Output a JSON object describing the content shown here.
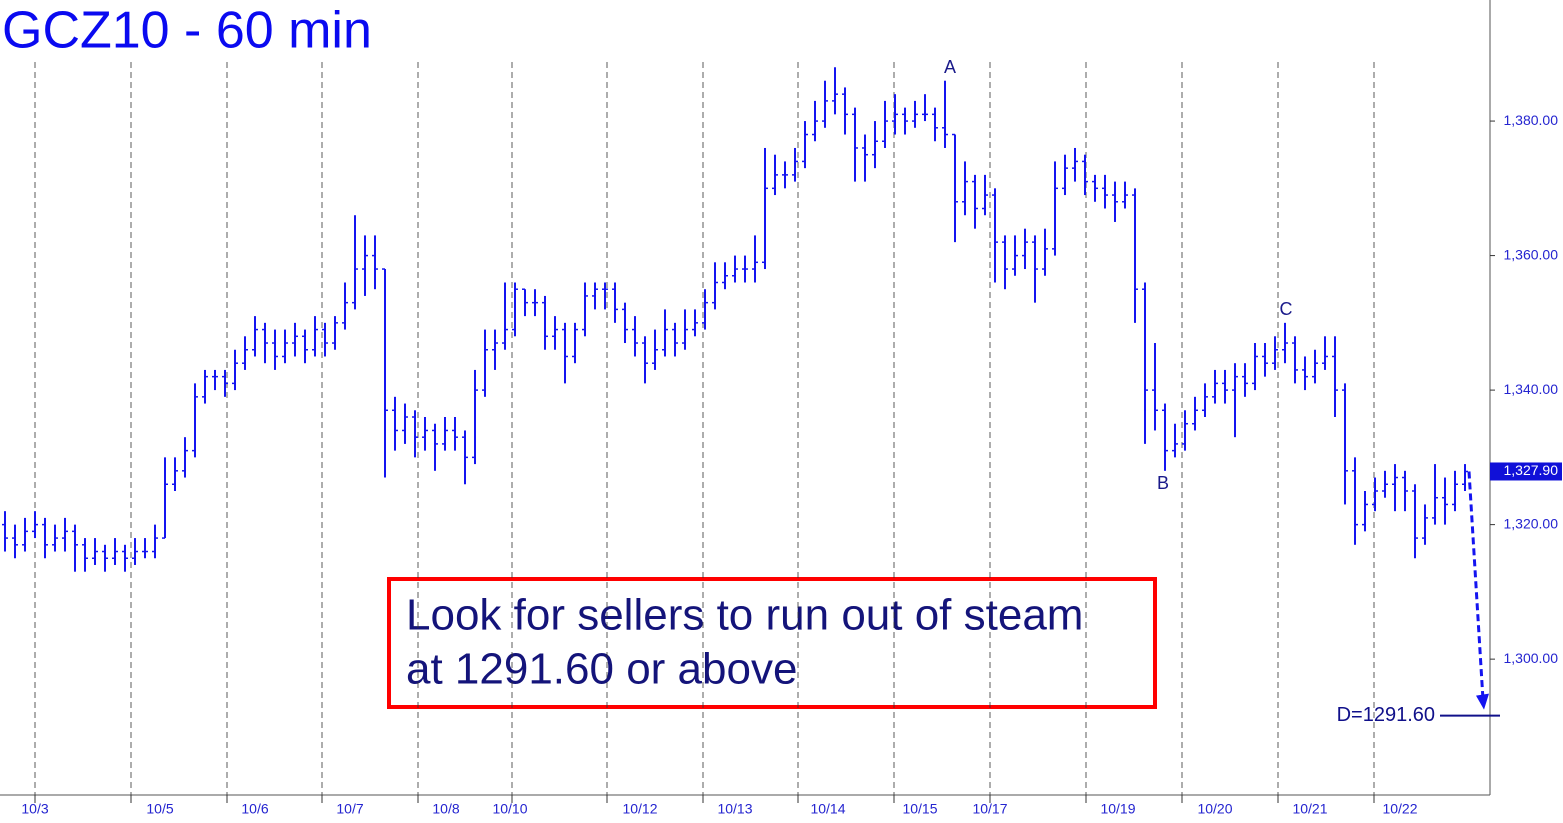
{
  "chart_data": {
    "type": "ohlc",
    "title": "GCZ10 - 60 min",
    "color": "#1414f0",
    "open": [
      1320,
      1318,
      1317,
      1319,
      1320,
      1317,
      1318,
      1319,
      1317,
      1315,
      1316,
      1315,
      1316,
      1315,
      1316,
      1316,
      1318,
      1326,
      1328,
      1331,
      1339,
      1342,
      1342,
      1341,
      1344,
      1346,
      1349,
      1347,
      1345,
      1347,
      1348,
      1346,
      1349,
      1347,
      1350,
      1353,
      1358,
      1360,
      1358,
      1337,
      1334,
      1336,
      1333,
      1334,
      1332,
      1334,
      1333,
      1330,
      1340,
      1346,
      1347,
      1349,
      1355,
      1353,
      1353,
      1348,
      1349,
      1345,
      1349,
      1354,
      1355,
      1355,
      1352,
      1349,
      1347,
      1344,
      1346,
      1349,
      1347,
      1349,
      1350,
      1353,
      1356,
      1357,
      1358,
      1358,
      1359,
      1370,
      1372,
      1372,
      1374,
      1378,
      1380,
      1383,
      1384,
      1381,
      1376,
      1375,
      1377,
      1380,
      1381,
      1380,
      1381,
      1381,
      1379,
      1378,
      1368,
      1371,
      1367,
      1369,
      1362,
      1358,
      1360,
      1362,
      1358,
      1361,
      1370,
      1373,
      1374,
      1371,
      1370,
      1369,
      1368,
      1369,
      1355,
      1340,
      1337,
      1331,
      1332,
      1335,
      1337,
      1339,
      1341,
      1340,
      1342,
      1341,
      1345,
      1344,
      1346,
      1347,
      1343,
      1342,
      1344,
      1345,
      1340,
      1328,
      1320,
      1323,
      1325,
      1326,
      1327,
      1325,
      1318,
      1321,
      1324,
      1323,
      1326
    ],
    "high": [
      1322,
      1320,
      1321,
      1322,
      1321,
      1320,
      1321,
      1320,
      1318,
      1318,
      1317,
      1318,
      1317,
      1318,
      1318,
      1320,
      1330,
      1330,
      1333,
      1341,
      1343,
      1343,
      1343,
      1346,
      1348,
      1351,
      1350,
      1349,
      1349,
      1350,
      1349,
      1351,
      1350,
      1351,
      1356,
      1366,
      1363,
      1363,
      1358,
      1339,
      1338,
      1337,
      1336,
      1335,
      1336,
      1336,
      1334,
      1343,
      1349,
      1349,
      1356,
      1356,
      1355,
      1355,
      1354,
      1351,
      1350,
      1350,
      1356,
      1356,
      1356,
      1356,
      1353,
      1351,
      1348,
      1349,
      1352,
      1350,
      1352,
      1352,
      1355,
      1359,
      1359,
      1360,
      1360,
      1363,
      1376,
      1375,
      1374,
      1376,
      1380,
      1383,
      1386,
      1388,
      1385,
      1382,
      1378,
      1380,
      1383,
      1384,
      1382,
      1383,
      1384,
      1382,
      1386,
      1378,
      1374,
      1372,
      1372,
      1370,
      1363,
      1363,
      1364,
      1363,
      1364,
      1374,
      1375,
      1376,
      1375,
      1372,
      1372,
      1371,
      1371,
      1370,
      1356,
      1347,
      1338,
      1335,
      1337,
      1339,
      1341,
      1343,
      1343,
      1344,
      1344,
      1347,
      1347,
      1348,
      1350,
      1348,
      1345,
      1346,
      1348,
      1348,
      1341,
      1330,
      1325,
      1327,
      1328,
      1329,
      1328,
      1326,
      1323,
      1329,
      1327,
      1328,
      1329
    ],
    "low": [
      1316,
      1315,
      1316,
      1318,
      1315,
      1316,
      1316,
      1313,
      1313,
      1314,
      1313,
      1314,
      1313,
      1314,
      1315,
      1315,
      1318,
      1325,
      1327,
      1330,
      1338,
      1340,
      1339,
      1340,
      1343,
      1345,
      1344,
      1343,
      1344,
      1345,
      1344,
      1345,
      1345,
      1346,
      1349,
      1352,
      1354,
      1355,
      1327,
      1331,
      1332,
      1330,
      1331,
      1328,
      1331,
      1331,
      1326,
      1329,
      1339,
      1343,
      1346,
      1348,
      1351,
      1351,
      1346,
      1346,
      1341,
      1344,
      1348,
      1352,
      1352,
      1350,
      1347,
      1345,
      1341,
      1343,
      1345,
      1345,
      1346,
      1348,
      1349,
      1352,
      1355,
      1356,
      1356,
      1356,
      1358,
      1369,
      1370,
      1371,
      1373,
      1377,
      1379,
      1381,
      1378,
      1371,
      1371,
      1373,
      1376,
      1378,
      1378,
      1379,
      1380,
      1377,
      1376,
      1362,
      1366,
      1364,
      1366,
      1356,
      1355,
      1357,
      1358,
      1353,
      1357,
      1360,
      1369,
      1371,
      1369,
      1368,
      1367,
      1365,
      1367,
      1350,
      1332,
      1334,
      1328,
      1330,
      1331,
      1334,
      1336,
      1338,
      1338,
      1333,
      1339,
      1340,
      1342,
      1343,
      1344,
      1341,
      1340,
      1341,
      1343,
      1336,
      1323,
      1317,
      1319,
      1322,
      1324,
      1322,
      1322,
      1315,
      1317,
      1320,
      1320,
      1322,
      1325
    ],
    "close": [
      1318,
      1317,
      1319,
      1320,
      1317,
      1318,
      1319,
      1317,
      1315,
      1316,
      1315,
      1316,
      1315,
      1316,
      1316,
      1318,
      1326,
      1328,
      1331,
      1339,
      1342,
      1342,
      1341,
      1344,
      1346,
      1349,
      1347,
      1345,
      1347,
      1348,
      1346,
      1349,
      1347,
      1350,
      1353,
      1358,
      1360,
      1358,
      1337,
      1334,
      1336,
      1333,
      1334,
      1332,
      1334,
      1333,
      1330,
      1340,
      1346,
      1347,
      1349,
      1355,
      1353,
      1353,
      1348,
      1349,
      1345,
      1349,
      1354,
      1355,
      1355,
      1352,
      1349,
      1347,
      1344,
      1346,
      1349,
      1347,
      1349,
      1350,
      1353,
      1356,
      1357,
      1358,
      1358,
      1359,
      1370,
      1372,
      1372,
      1374,
      1378,
      1380,
      1383,
      1384,
      1381,
      1376,
      1375,
      1377,
      1380,
      1381,
      1380,
      1381,
      1381,
      1379,
      1378,
      1368,
      1371,
      1367,
      1369,
      1362,
      1358,
      1360,
      1362,
      1358,
      1361,
      1370,
      1373,
      1374,
      1371,
      1370,
      1369,
      1368,
      1369,
      1355,
      1340,
      1337,
      1331,
      1332,
      1335,
      1337,
      1339,
      1341,
      1340,
      1342,
      1341,
      1345,
      1344,
      1346,
      1347,
      1343,
      1342,
      1344,
      1345,
      1340,
      1328,
      1320,
      1323,
      1325,
      1326,
      1327,
      1325,
      1318,
      1321,
      1324,
      1323,
      1326,
      1327.9
    ],
    "xlim": [
      -0.5,
      148.5
    ],
    "xticks": [
      {
        "value": 3,
        "label": "10/3"
      },
      {
        "value": 15.5,
        "label": "10/5"
      },
      {
        "value": 25,
        "label": "10/6"
      },
      {
        "value": 34.5,
        "label": "10/7"
      },
      {
        "value": 44.1,
        "label": "10/8"
      },
      {
        "value": 50.5,
        "label": "10/10"
      },
      {
        "value": 63.5,
        "label": "10/12"
      },
      {
        "value": 73,
        "label": "10/13"
      },
      {
        "value": 82.3,
        "label": "10/14"
      },
      {
        "value": 91.5,
        "label": "10/15"
      },
      {
        "value": 98.5,
        "label": "10/17"
      },
      {
        "value": 111.3,
        "label": "10/19"
      },
      {
        "value": 121,
        "label": "10/20"
      },
      {
        "value": 130.5,
        "label": "10/21"
      },
      {
        "value": 139.5,
        "label": "10/22"
      }
    ],
    "xgrid": [
      3,
      12.6,
      22.2,
      31.7,
      41.3,
      50.7,
      60.2,
      69.8,
      79.3,
      88.9,
      98.5,
      108.1,
      117.7,
      127.3,
      136.9
    ],
    "ylim": [
      1279.8,
      1398
    ],
    "yticks": [
      {
        "value": 1300,
        "label": "1,300.00"
      },
      {
        "value": 1320,
        "label": "1,320.00"
      },
      {
        "value": 1340,
        "label": "1,340.00"
      },
      {
        "value": 1360,
        "label": "1,360.00"
      },
      {
        "value": 1380,
        "label": "1,380.00"
      }
    ],
    "last_price": {
      "value": 1327.9,
      "label": "1,327.90"
    },
    "target": {
      "value": 1291.6,
      "label": "D=1291.60"
    },
    "points": [
      "A",
      "B",
      "C"
    ],
    "callout": [
      "Look for sellers to run out of steam",
      "at 1291.60 or above"
    ]
  }
}
